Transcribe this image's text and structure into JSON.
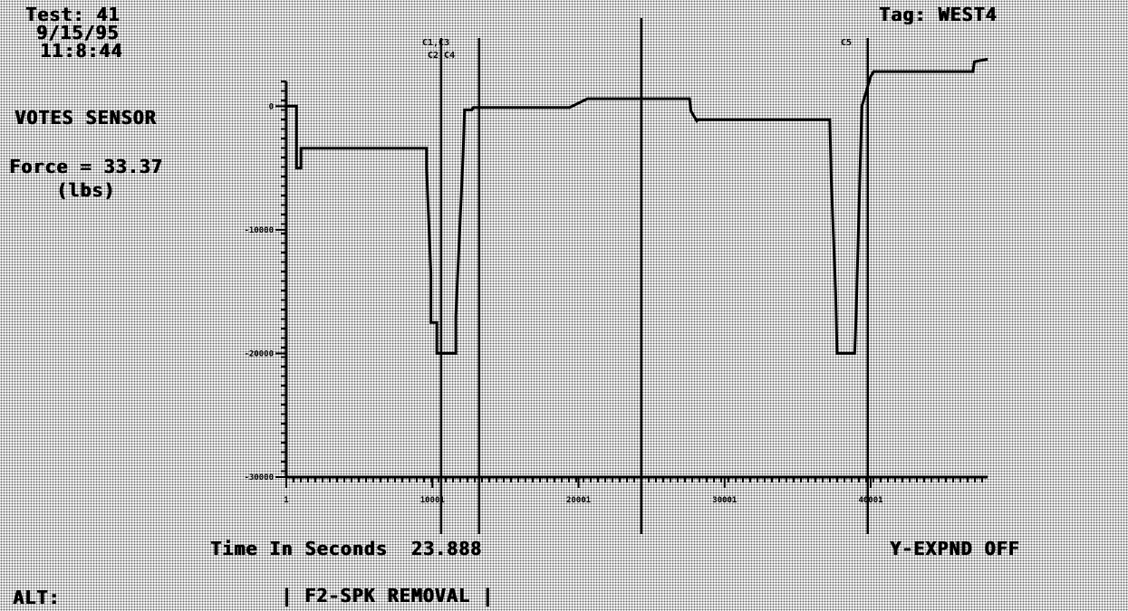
{
  "header": {
    "test": "Test: 41",
    "date": "9/15/95",
    "time": "11:8:44",
    "tag": "Tag: WEST4"
  },
  "sensor": {
    "name": "VOTES SENSOR",
    "force": "Force = 33.37",
    "unit": "(lbs)"
  },
  "footer": {
    "time_label": "Time In Seconds  23.888",
    "y_expand": "Y-EXPND OFF",
    "alt": "ALT:",
    "menu": "| F2-SPK REMOVAL |"
  },
  "cursor_labels": [
    "C1,C3",
    "C2,C4",
    "C5"
  ],
  "colors": {
    "background": "#f2f2f2",
    "ink": "#000000",
    "stipple": "#6a6a6a"
  },
  "chart_data": {
    "type": "line",
    "xlabel": "Time In Seconds",
    "ylim": [
      -30000,
      2000
    ],
    "xlim": [
      0,
      48000
    ],
    "y_ticks": [
      {
        "value": 0,
        "label": "0"
      },
      {
        "value": -10000,
        "label": "-10000"
      },
      {
        "value": -20000,
        "label": "-20000"
      },
      {
        "value": -30000,
        "label": "-30000"
      }
    ],
    "x_ticks": [
      {
        "value": 1,
        "label": "1"
      },
      {
        "value": 10001,
        "label": "10001"
      },
      {
        "value": 20001,
        "label": "20001"
      },
      {
        "value": 30001,
        "label": "30001"
      },
      {
        "value": 40001,
        "label": "40001"
      }
    ],
    "cursors_x": [
      10600,
      13200,
      24300,
      39800
    ],
    "series": [
      {
        "x": [
          1,
          700,
          700,
          1000,
          1000,
          9600,
          9600,
          9900,
          9900,
          10300,
          10300,
          11600,
          11600,
          12100,
          12200,
          12700,
          12800,
          19400,
          20600,
          27600,
          27700,
          28100,
          28200,
          37200,
          37300,
          37600,
          37700,
          38900,
          39000,
          39300,
          39400,
          40000,
          40200,
          47000,
          47100,
          48000
        ],
        "y": [
          0,
          0,
          -5000,
          -5000,
          -3400,
          -3400,
          -5000,
          -13500,
          -17500,
          -17500,
          -20000,
          -20000,
          -17000,
          -4000,
          -300,
          -300,
          -100,
          -100,
          600,
          600,
          -400,
          -1200,
          -1100,
          -1100,
          -6000,
          -15000,
          -20000,
          -20000,
          -17000,
          -4000,
          0,
          2400,
          2800,
          2800,
          3600,
          3800
        ]
      }
    ],
    "grid": false,
    "legend": "none"
  }
}
